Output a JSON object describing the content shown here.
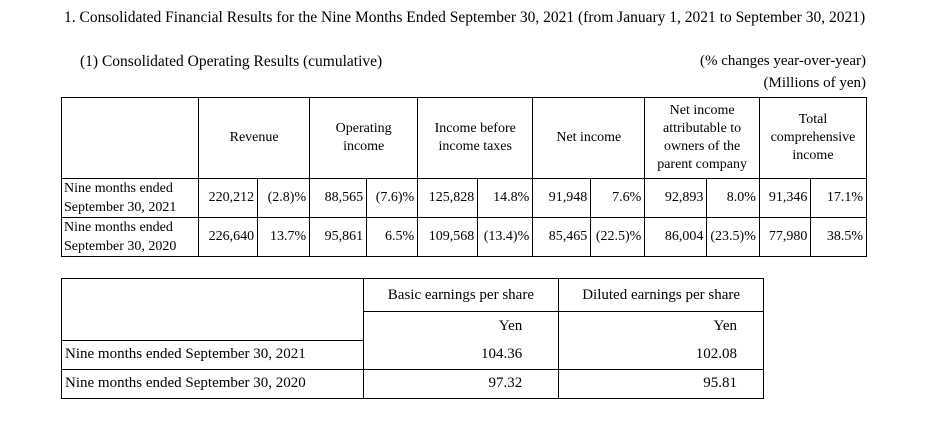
{
  "title": "1. Consolidated Financial Results for the Nine Months Ended September 30, 2021 (from January 1, 2021 to September 30, 2021)",
  "subtitle": "(1) Consolidated Operating Results (cumulative)",
  "note_pct": "(% changes year-over-year)",
  "note_unit": "(Millions of yen)",
  "results": {
    "headers": {
      "revenue": "Revenue",
      "operating_income": "Operating income",
      "income_before_taxes": "Income before income taxes",
      "net_income": "Net income",
      "net_income_parent": "Net income attributable to owners of the parent company",
      "total_comprehensive": "Total comprehensive income"
    },
    "rows": [
      {
        "label": "Nine months ended September 30, 2021",
        "cells": [
          "220,212",
          "(2.8)%",
          "88,565",
          "(7.6)%",
          "125,828",
          "14.8%",
          "91,948",
          "7.6%",
          "92,893",
          "8.0%",
          "91,346",
          "17.1%"
        ]
      },
      {
        "label": "Nine months ended September 30, 2020",
        "cells": [
          "226,640",
          "13.7%",
          "95,861",
          "6.5%",
          "109,568",
          "(13.4)%",
          "85,465",
          "(22.5)%",
          "86,004",
          "(23.5)%",
          "77,980",
          "38.5%"
        ]
      }
    ]
  },
  "eps": {
    "headers": {
      "basic": "Basic earnings per share",
      "diluted": "Diluted earnings per share"
    },
    "unit_basic": "Yen",
    "unit_diluted": "Yen",
    "rows": [
      {
        "label": "Nine months ended September 30, 2021",
        "basic": "104.36",
        "diluted": "102.08"
      },
      {
        "label": "Nine months ended September 30, 2020",
        "basic": "97.32",
        "diluted": "95.81"
      }
    ]
  }
}
